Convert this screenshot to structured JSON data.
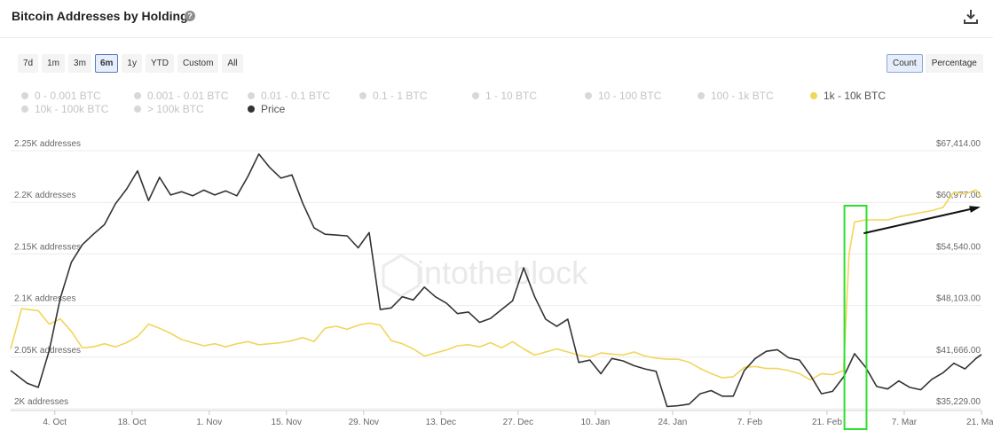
{
  "header": {
    "title": "Bitcoin Addresses by Holdings",
    "help_glyph": "?",
    "help_icon": "question-circle-icon",
    "download_icon": "download-icon"
  },
  "controls": {
    "ranges": [
      "7d",
      "1m",
      "3m",
      "6m",
      "1y",
      "YTD",
      "Custom",
      "All"
    ],
    "active_range": "6m",
    "modes": [
      "Count",
      "Percentage"
    ],
    "active_mode": "Count"
  },
  "watermark": "intotheblock",
  "colors": {
    "holdings_series": "#f2d55a",
    "price_series": "#333333",
    "inactive_legend": "#d8d8d8",
    "highlight_box": "#2ee02e",
    "arrow": "#111111"
  },
  "chart_data": {
    "type": "line",
    "legend": [
      {
        "name": "0 - 0.001 BTC",
        "active": false
      },
      {
        "name": "0.001 - 0.01 BTC",
        "active": false
      },
      {
        "name": "0.01 - 0.1 BTC",
        "active": false
      },
      {
        "name": "0.1 - 1 BTC",
        "active": false
      },
      {
        "name": "1 - 10 BTC",
        "active": false
      },
      {
        "name": "10 - 100 BTC",
        "active": false
      },
      {
        "name": "100 - 1k BTC",
        "active": false
      },
      {
        "name": "1k - 10k BTC",
        "active": true
      },
      {
        "name": "10k - 100k BTC",
        "active": false
      },
      {
        "name": "> 100k BTC",
        "active": false
      },
      {
        "name": "Price",
        "active": true
      }
    ],
    "x_ticks": [
      "4. Oct",
      "18. Oct",
      "1. Nov",
      "15. Nov",
      "29. Nov",
      "13. Dec",
      "27. Dec",
      "10. Jan",
      "24. Jan",
      "7. Feb",
      "21. Feb",
      "7. Mar",
      "21. Mar"
    ],
    "x_range": [
      "2020-09-26",
      "2021-03-21"
    ],
    "left_axis": {
      "unit_suffix": " addresses",
      "ticks": [
        "2K addresses",
        "2.05K addresses",
        "2.1K addresses",
        "2.15K addresses",
        "2.2K addresses",
        "2.25K addresses"
      ],
      "range": [
        2000,
        2250
      ]
    },
    "right_axis": {
      "ticks": [
        "$35,229.00",
        "$41,666.00",
        "$48,103.00",
        "$54,540.00",
        "$60,977.00",
        "$67,414.00"
      ],
      "range": [
        35229,
        67414
      ]
    },
    "series": [
      {
        "name": "1k - 10k BTC",
        "axis": "left",
        "points": [
          [
            "2020-09-26",
            2058
          ],
          [
            "2020-09-28",
            2097
          ],
          [
            "2020-10-01",
            2095
          ],
          [
            "2020-10-03",
            2082
          ],
          [
            "2020-10-05",
            2087
          ],
          [
            "2020-10-07",
            2075
          ],
          [
            "2020-10-09",
            2059
          ],
          [
            "2020-10-11",
            2060
          ],
          [
            "2020-10-13",
            2063
          ],
          [
            "2020-10-15",
            2060
          ],
          [
            "2020-10-17",
            2064
          ],
          [
            "2020-10-19",
            2070
          ],
          [
            "2020-10-21",
            2082
          ],
          [
            "2020-10-23",
            2078
          ],
          [
            "2020-10-25",
            2073
          ],
          [
            "2020-10-27",
            2067
          ],
          [
            "2020-10-29",
            2064
          ],
          [
            "2020-10-31",
            2061
          ],
          [
            "2020-11-02",
            2063
          ],
          [
            "2020-11-04",
            2060
          ],
          [
            "2020-11-06",
            2063
          ],
          [
            "2020-11-08",
            2065
          ],
          [
            "2020-11-10",
            2062
          ],
          [
            "2020-11-12",
            2063
          ],
          [
            "2020-11-14",
            2064
          ],
          [
            "2020-11-16",
            2066
          ],
          [
            "2020-11-18",
            2069
          ],
          [
            "2020-11-20",
            2065
          ],
          [
            "2020-11-22",
            2078
          ],
          [
            "2020-11-24",
            2080
          ],
          [
            "2020-11-26",
            2077
          ],
          [
            "2020-11-28",
            2081
          ],
          [
            "2020-11-30",
            2083
          ],
          [
            "2020-12-02",
            2081
          ],
          [
            "2020-12-04",
            2066
          ],
          [
            "2020-12-06",
            2063
          ],
          [
            "2020-12-08",
            2058
          ],
          [
            "2020-12-10",
            2051
          ],
          [
            "2020-12-12",
            2054
          ],
          [
            "2020-12-14",
            2057
          ],
          [
            "2020-12-16",
            2061
          ],
          [
            "2020-12-18",
            2062
          ],
          [
            "2020-12-20",
            2060
          ],
          [
            "2020-12-22",
            2064
          ],
          [
            "2020-12-24",
            2059
          ],
          [
            "2020-12-26",
            2065
          ],
          [
            "2020-12-28",
            2058
          ],
          [
            "2020-12-30",
            2052
          ],
          [
            "2021-01-01",
            2055
          ],
          [
            "2021-01-03",
            2058
          ],
          [
            "2021-01-05",
            2055
          ],
          [
            "2021-01-07",
            2052
          ],
          [
            "2021-01-09",
            2050
          ],
          [
            "2021-01-11",
            2054
          ],
          [
            "2021-01-13",
            2053
          ],
          [
            "2021-01-15",
            2052
          ],
          [
            "2021-01-17",
            2055
          ],
          [
            "2021-01-19",
            2051
          ],
          [
            "2021-01-21",
            2049
          ],
          [
            "2021-01-23",
            2048
          ],
          [
            "2021-01-25",
            2048
          ],
          [
            "2021-01-27",
            2045
          ],
          [
            "2021-01-29",
            2039
          ],
          [
            "2021-01-31",
            2034
          ],
          [
            "2021-02-02",
            2030
          ],
          [
            "2021-02-04",
            2031
          ],
          [
            "2021-02-06",
            2040
          ],
          [
            "2021-02-08",
            2041
          ],
          [
            "2021-02-10",
            2039
          ],
          [
            "2021-02-12",
            2039
          ],
          [
            "2021-02-14",
            2037
          ],
          [
            "2021-02-16",
            2034
          ],
          [
            "2021-02-18",
            2028
          ],
          [
            "2021-02-20",
            2034
          ],
          [
            "2021-02-22",
            2033
          ],
          [
            "2021-02-24",
            2037
          ],
          [
            "2021-02-25",
            2150
          ],
          [
            "2021-02-26",
            2181
          ],
          [
            "2021-02-28",
            2183
          ],
          [
            "2021-03-02",
            2183
          ],
          [
            "2021-03-04",
            2183
          ],
          [
            "2021-03-06",
            2186
          ],
          [
            "2021-03-08",
            2188
          ],
          [
            "2021-03-10",
            2190
          ],
          [
            "2021-03-12",
            2192
          ],
          [
            "2021-03-14",
            2195
          ],
          [
            "2021-03-16",
            2210
          ],
          [
            "2021-03-18",
            2208
          ],
          [
            "2021-03-20",
            2212
          ],
          [
            "2021-03-21",
            2205
          ]
        ]
      },
      {
        "name": "Price",
        "axis": "right",
        "points": [
          [
            "2020-09-26",
            40000
          ],
          [
            "2020-09-29",
            38400
          ],
          [
            "2020-10-01",
            37900
          ],
          [
            "2020-10-03",
            42500
          ],
          [
            "2020-10-05",
            49000
          ],
          [
            "2020-10-07",
            53500
          ],
          [
            "2020-10-09",
            55700
          ],
          [
            "2020-10-11",
            57000
          ],
          [
            "2020-10-13",
            58200
          ],
          [
            "2020-10-15",
            60800
          ],
          [
            "2020-10-17",
            62600
          ],
          [
            "2020-10-19",
            64900
          ],
          [
            "2020-10-21",
            61200
          ],
          [
            "2020-10-23",
            64100
          ],
          [
            "2020-10-25",
            61900
          ],
          [
            "2020-10-27",
            62300
          ],
          [
            "2020-10-29",
            61800
          ],
          [
            "2020-10-31",
            62500
          ],
          [
            "2020-11-02",
            61900
          ],
          [
            "2020-11-04",
            62400
          ],
          [
            "2020-11-06",
            61800
          ],
          [
            "2020-11-08",
            64200
          ],
          [
            "2020-11-10",
            67000
          ],
          [
            "2020-11-12",
            65300
          ],
          [
            "2020-11-14",
            64000
          ],
          [
            "2020-11-16",
            64400
          ],
          [
            "2020-11-18",
            60800
          ],
          [
            "2020-11-20",
            57800
          ],
          [
            "2020-11-22",
            57000
          ],
          [
            "2020-11-24",
            56900
          ],
          [
            "2020-11-26",
            56800
          ],
          [
            "2020-11-28",
            55300
          ],
          [
            "2020-11-30",
            57200
          ],
          [
            "2020-12-02",
            47600
          ],
          [
            "2020-12-04",
            47800
          ],
          [
            "2020-12-06",
            49200
          ],
          [
            "2020-12-08",
            48800
          ],
          [
            "2020-12-10",
            50400
          ],
          [
            "2020-12-12",
            49200
          ],
          [
            "2020-12-14",
            48400
          ],
          [
            "2020-12-16",
            47100
          ],
          [
            "2020-12-18",
            47300
          ],
          [
            "2020-12-20",
            46000
          ],
          [
            "2020-12-22",
            46500
          ],
          [
            "2020-12-24",
            47600
          ],
          [
            "2020-12-26",
            48700
          ],
          [
            "2020-12-28",
            52800
          ],
          [
            "2020-12-30",
            49200
          ],
          [
            "2021-01-01",
            46400
          ],
          [
            "2021-01-03",
            45500
          ],
          [
            "2021-01-05",
            46400
          ],
          [
            "2021-01-07",
            41000
          ],
          [
            "2021-01-09",
            41300
          ],
          [
            "2021-01-11",
            39600
          ],
          [
            "2021-01-13",
            41500
          ],
          [
            "2021-01-15",
            41200
          ],
          [
            "2021-01-17",
            40600
          ],
          [
            "2021-01-19",
            40200
          ],
          [
            "2021-01-21",
            39900
          ],
          [
            "2021-01-23",
            35500
          ],
          [
            "2021-01-25",
            35600
          ],
          [
            "2021-01-27",
            35800
          ],
          [
            "2021-01-29",
            37100
          ],
          [
            "2021-01-31",
            37500
          ],
          [
            "2021-02-02",
            36800
          ],
          [
            "2021-02-04",
            36800
          ],
          [
            "2021-02-06",
            40000
          ],
          [
            "2021-02-08",
            41500
          ],
          [
            "2021-02-10",
            42400
          ],
          [
            "2021-02-12",
            42600
          ],
          [
            "2021-02-14",
            41600
          ],
          [
            "2021-02-16",
            41300
          ],
          [
            "2021-02-18",
            39400
          ],
          [
            "2021-02-20",
            37100
          ],
          [
            "2021-02-22",
            37400
          ],
          [
            "2021-02-24",
            39200
          ],
          [
            "2021-02-26",
            42100
          ],
          [
            "2021-02-28",
            40400
          ],
          [
            "2021-03-02",
            38000
          ],
          [
            "2021-03-04",
            37700
          ],
          [
            "2021-03-06",
            38700
          ],
          [
            "2021-03-08",
            37900
          ],
          [
            "2021-03-10",
            37600
          ],
          [
            "2021-03-12",
            38900
          ],
          [
            "2021-03-14",
            39700
          ],
          [
            "2021-03-16",
            40900
          ],
          [
            "2021-03-18",
            40200
          ],
          [
            "2021-03-20",
            41500
          ],
          [
            "2021-03-21",
            42000
          ]
        ]
      }
    ],
    "annotations": {
      "highlight_box": {
        "x_start": "2021-02-24",
        "x_end": "2021-02-28"
      },
      "arrow": {
        "from": [
          "2021-02-27",
          2170
        ],
        "to": [
          "2021-03-21",
          2195
        ]
      }
    },
    "grid": true
  }
}
